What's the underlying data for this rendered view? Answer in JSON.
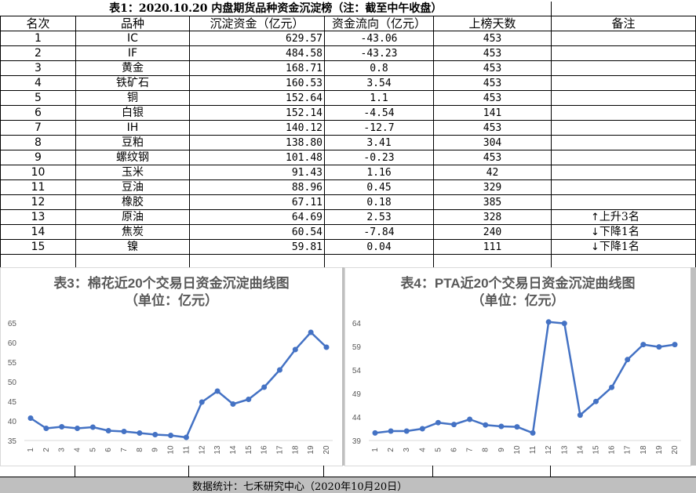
{
  "table": {
    "title": "表1：2020.10.20 内盘期货品种资金沉淀榜（注：截至中午收盘）",
    "headers": [
      "名次",
      "品种",
      "沉淀资金（亿元）",
      "资金流向（亿元）",
      "上榜天数",
      "备注"
    ],
    "rows": [
      {
        "rank": "1",
        "name": "IC",
        "fund": "629.57",
        "flow": "-43.06",
        "days": "453",
        "note": ""
      },
      {
        "rank": "2",
        "name": "IF",
        "fund": "484.58",
        "flow": "-43.23",
        "days": "453",
        "note": ""
      },
      {
        "rank": "3",
        "name": "黄金",
        "fund": "168.71",
        "flow": "0.8",
        "days": "453",
        "note": ""
      },
      {
        "rank": "4",
        "name": "铁矿石",
        "fund": "160.53",
        "flow": "3.54",
        "days": "453",
        "note": ""
      },
      {
        "rank": "5",
        "name": "铜",
        "fund": "152.64",
        "flow": "1.1",
        "days": "453",
        "note": ""
      },
      {
        "rank": "6",
        "name": "白银",
        "fund": "152.14",
        "flow": "-4.54",
        "days": "141",
        "note": ""
      },
      {
        "rank": "7",
        "name": "IH",
        "fund": "140.12",
        "flow": "-12.7",
        "days": "453",
        "note": ""
      },
      {
        "rank": "8",
        "name": "豆粕",
        "fund": "138.80",
        "flow": "3.41",
        "days": "304",
        "note": ""
      },
      {
        "rank": "9",
        "name": "螺纹钢",
        "fund": "101.48",
        "flow": "-0.23",
        "days": "453",
        "note": ""
      },
      {
        "rank": "10",
        "name": "玉米",
        "fund": "91.43",
        "flow": "1.16",
        "days": "42",
        "note": ""
      },
      {
        "rank": "11",
        "name": "豆油",
        "fund": "88.96",
        "flow": "0.45",
        "days": "329",
        "note": ""
      },
      {
        "rank": "12",
        "name": "橡胶",
        "fund": "67.11",
        "flow": "0.18",
        "days": "385",
        "note": ""
      },
      {
        "rank": "13",
        "name": "原油",
        "fund": "64.69",
        "flow": "2.53",
        "days": "328",
        "note": "上升3名",
        "arrow": "↑"
      },
      {
        "rank": "14",
        "name": "焦炭",
        "fund": "60.54",
        "flow": "-7.84",
        "days": "240",
        "note": "下降1名",
        "arrow": "↓"
      },
      {
        "rank": "15",
        "name": "镍",
        "fund": "59.81",
        "flow": "0.04",
        "days": "111",
        "note": "下降1名",
        "arrow": "↓"
      }
    ]
  },
  "chart_data": [
    {
      "type": "line",
      "title": "表3：棉花近20个交易日资金沉淀曲线图",
      "subtitle": "（单位：亿元）",
      "x": [
        "1",
        "2",
        "3",
        "4",
        "5",
        "6",
        "7",
        "8",
        "9",
        "10",
        "11",
        "12",
        "13",
        "14",
        "15",
        "16",
        "17",
        "18",
        "19",
        "20"
      ],
      "values": [
        40.7,
        38.1,
        38.5,
        38.1,
        38.4,
        37.5,
        37.3,
        36.9,
        36.5,
        36.3,
        35.8,
        44.8,
        47.6,
        44.3,
        45.5,
        48.6,
        53.0,
        58.2,
        62.6,
        58.8
      ],
      "ylim": [
        35,
        65
      ],
      "yticks": [
        35,
        40,
        45,
        50,
        55,
        60,
        65
      ],
      "color": "#4472c4",
      "grid": false
    },
    {
      "type": "line",
      "title": "表4：PTA近20个交易日资金沉淀曲线图",
      "subtitle": "（单位：亿元）",
      "x": [
        "1",
        "2",
        "3",
        "4",
        "5",
        "6",
        "7",
        "8",
        "9",
        "10",
        "11",
        "12",
        "13",
        "14",
        "15",
        "16",
        "17",
        "18",
        "19",
        "20"
      ],
      "values": [
        40.6,
        41.0,
        41.0,
        41.5,
        42.8,
        42.4,
        43.5,
        42.3,
        42.0,
        41.9,
        40.6,
        64.2,
        63.9,
        44.4,
        47.3,
        50.3,
        56.2,
        59.4,
        58.9,
        59.4
      ],
      "ylim": [
        39,
        64
      ],
      "yticks": [
        39,
        44,
        49,
        54,
        59,
        64
      ],
      "color": "#4472c4",
      "grid": false
    }
  ],
  "footer": {
    "text": "数据统计：七禾研究中心（2020年10月20日）"
  }
}
